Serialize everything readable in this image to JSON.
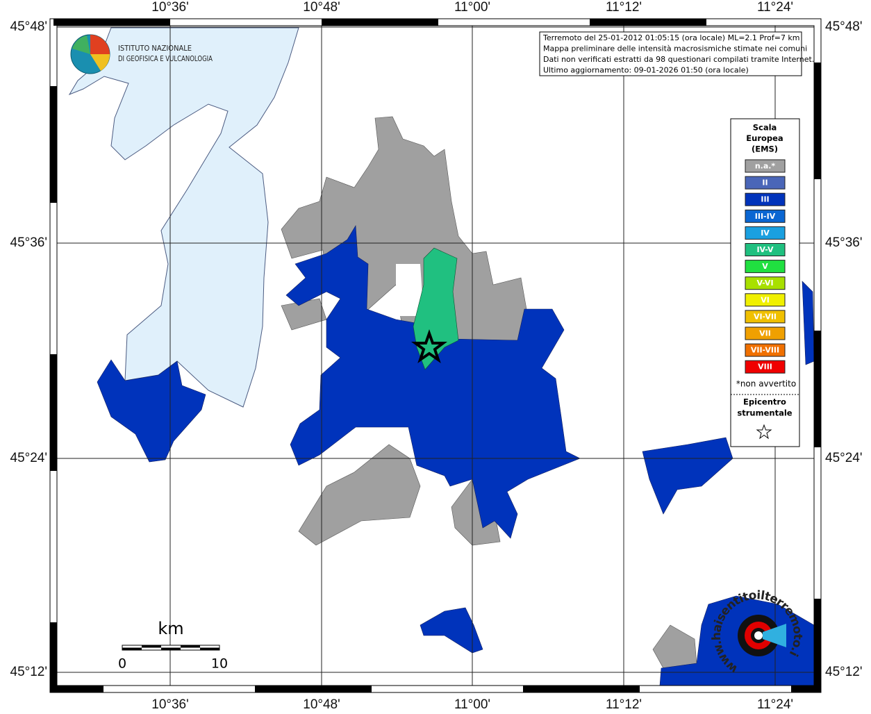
{
  "logo": {
    "line1": "ISTITUTO NAZIONALE",
    "line2": "DI GEOFISICA E VULCANOLOGIA"
  },
  "info": [
    "Terremoto del 25-01-2012 01:05:15 (ora locale) ML=2.1 Prof=7 km",
    "Mappa preliminare delle intensità macrosismiche stimate nei comuni",
    "Dati non verificati estratti da 98 questionari compilati tramite Internet.",
    "Ultimo aggiornamento: 09-01-2026 01:50 (ora locale)"
  ],
  "lon_labels": [
    "10°36'",
    "10°48'",
    "11°00'",
    "11°12'",
    "11°24'"
  ],
  "lat_labels": [
    "45°48'",
    "45°36'",
    "45°24'",
    "45°12'"
  ],
  "legend": {
    "title": [
      "Scala",
      "Europea",
      "(EMS)"
    ],
    "entries": [
      {
        "label": "n.a.*",
        "color": "#a0a0a0"
      },
      {
        "label": "II",
        "color": "#4a66b8"
      },
      {
        "label": "III",
        "color": "#0033bb"
      },
      {
        "label": "III-IV",
        "color": "#0a66d2"
      },
      {
        "label": "IV",
        "color": "#1aa0e0"
      },
      {
        "label": "IV-V",
        "color": "#20c080"
      },
      {
        "label": "V",
        "color": "#20e040"
      },
      {
        "label": "V-VI",
        "color": "#a8e000"
      },
      {
        "label": "VI",
        "color": "#f0f000"
      },
      {
        "label": "VI-VII",
        "color": "#f0c000"
      },
      {
        "label": "VII",
        "color": "#f0a000"
      },
      {
        "label": "VII-VIII",
        "color": "#f07000"
      },
      {
        "label": "VIII",
        "color": "#f00000"
      }
    ],
    "note": "*non avvertito",
    "epicenter": [
      "Epicentro",
      "strumentale"
    ]
  },
  "scale": {
    "unit": "km",
    "start": "0",
    "end": "10"
  },
  "watermark": "www.haisentitoilterremoto.it"
}
